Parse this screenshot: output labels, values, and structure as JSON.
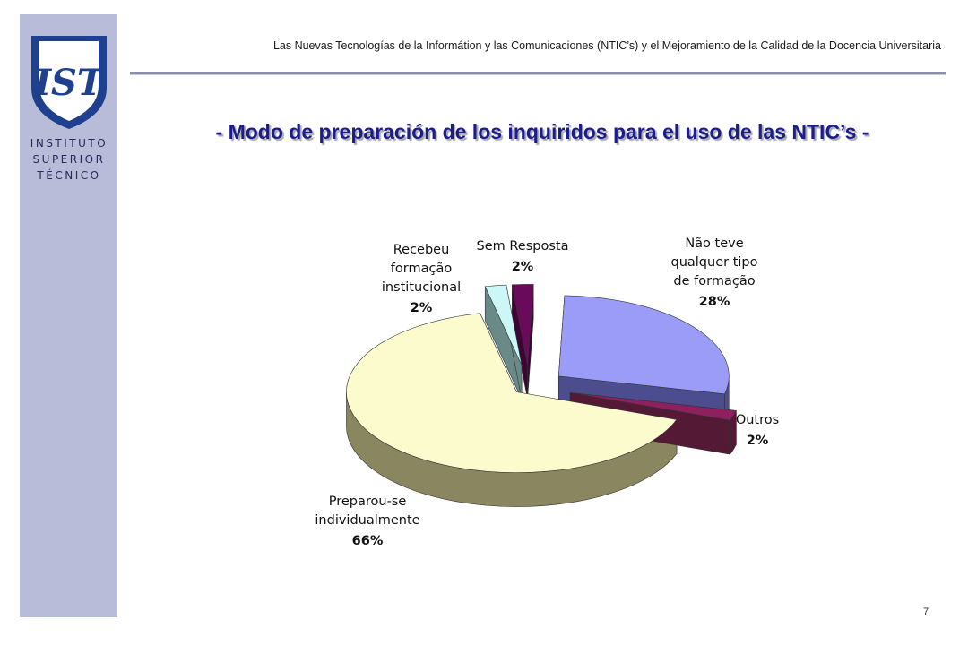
{
  "header": {
    "text": "Las Nuevas Tecnologías de la Informátion y las Comunicaciones (NTIC’s) y el Mejoramiento de la Calidad de la Docencia  Universitaria"
  },
  "logo": {
    "mark": "IST",
    "lines": [
      "INSTITUTO",
      "SUPERIOR",
      "TÉCNICO"
    ]
  },
  "title": "- Modo de preparación de los inquiridos para el uso de las NTIC’s -",
  "page_number": "7",
  "colors": {
    "sidebar": "#b8bcd9",
    "title": "#1c1c8c",
    "logo_blue": "#1f3f8f"
  },
  "chart_data": {
    "type": "pie",
    "style": "3d-exploded",
    "title": "",
    "slices": [
      {
        "label_lines": [
          "Não teve",
          "qualquer tipo",
          "de formação"
        ],
        "pct_label": "28%",
        "value": 28,
        "color": "#9a9cf8",
        "side": "#4b4d8e"
      },
      {
        "label_lines": [
          "Outros"
        ],
        "pct_label": "2%",
        "value": 2,
        "color": "#8f2060",
        "side": "#541a35"
      },
      {
        "label_lines": [
          "Preparou-se",
          "individualmente"
        ],
        "pct_label": "66%",
        "value": 66,
        "color": "#fbfbcd",
        "side": "#8a8660"
      },
      {
        "label_lines": [
          "Recebeu",
          "formação",
          "institucional"
        ],
        "pct_label": "2%",
        "value": 2,
        "color": "#cdf7f7",
        "side": "#6a8a88"
      },
      {
        "label_lines": [
          "Sem Resposta"
        ],
        "pct_label": "2%",
        "value": 2,
        "color": "#6a0a5a",
        "side": "#3c0535"
      }
    ]
  }
}
